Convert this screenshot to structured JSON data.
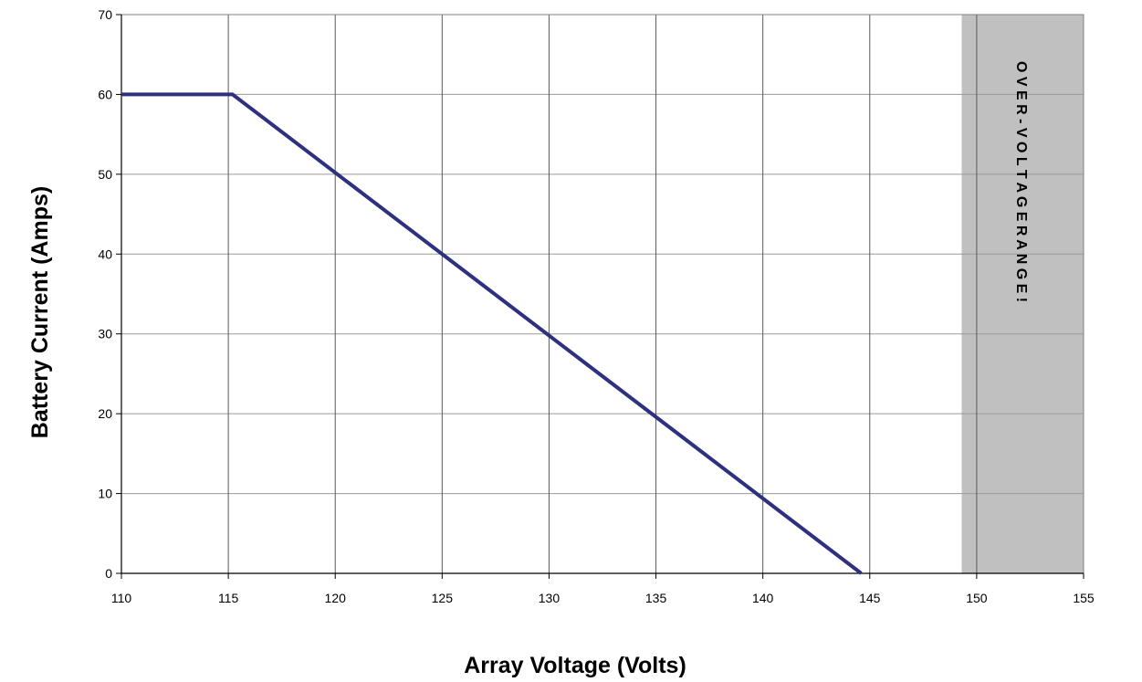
{
  "chart_data": {
    "type": "line",
    "xlabel": "Array Voltage (Volts)",
    "ylabel": "Battery Current (Amps)",
    "xlim": [
      110,
      155
    ],
    "ylim": [
      0,
      70
    ],
    "x_ticks": [
      110,
      115,
      120,
      125,
      130,
      135,
      140,
      145,
      150,
      155
    ],
    "y_ticks": [
      0,
      10,
      20,
      30,
      40,
      50,
      60,
      70
    ],
    "grid": {
      "vertical": true,
      "horizontal": true
    },
    "legend": "none",
    "series": [
      {
        "color": "#2e3080",
        "points": [
          [
            110,
            60
          ],
          [
            115.2,
            60
          ],
          [
            144.6,
            0
          ]
        ]
      }
    ],
    "shaded_region": {
      "x_range": [
        149.3,
        155
      ],
      "color": "#c0c0c0",
      "label": "O V E R - V O L T A G E   R A N G E !"
    }
  }
}
